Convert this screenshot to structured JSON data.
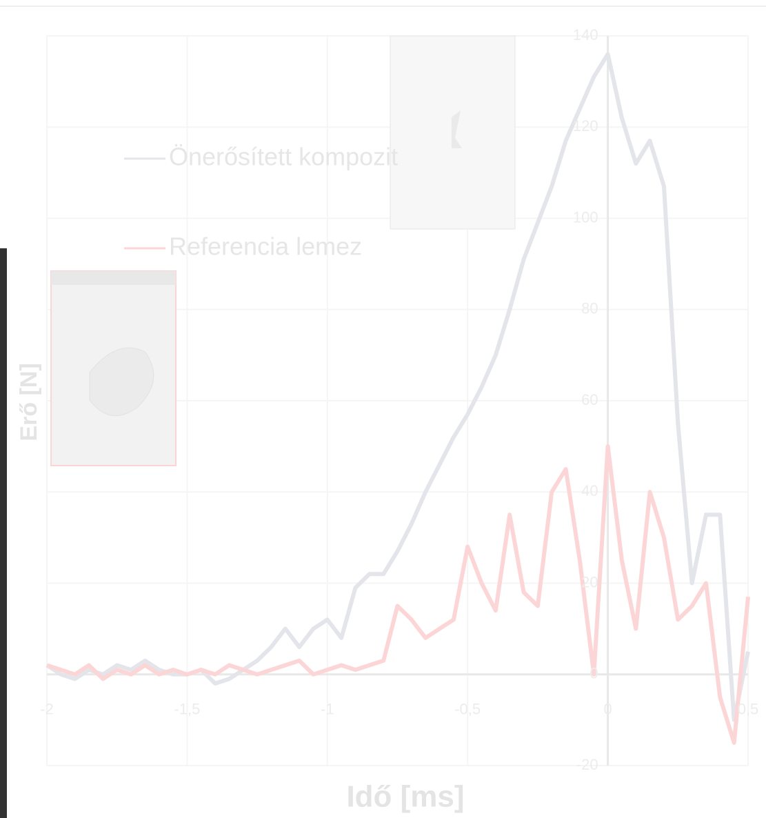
{
  "chart_data": {
    "type": "line",
    "x_label": "Idő [ms]",
    "y_label": "Erő [N]",
    "x": [
      -2,
      -1.95,
      -1.9,
      -1.85,
      -1.8,
      -1.75,
      -1.7,
      -1.65,
      -1.6,
      -1.55,
      -1.5,
      -1.45,
      -1.4,
      -1.35,
      -1.3,
      -1.25,
      -1.2,
      -1.15,
      -1.1,
      -1.05,
      -1,
      -0.95,
      -0.9,
      -0.85,
      -0.8,
      -0.75,
      -0.7,
      -0.65,
      -0.6,
      -0.55,
      -0.5,
      -0.45,
      -0.4,
      -0.35,
      -0.3,
      -0.25,
      -0.2,
      -0.15,
      -0.1,
      -0.05,
      0,
      0.05,
      0.1,
      0.15,
      0.2,
      0.25,
      0.3,
      0.35,
      0.4,
      0.45,
      0.5
    ],
    "series": [
      {
        "name": "Önerősített kompozit",
        "color": "#e3e5ea",
        "values": [
          2,
          0,
          -1,
          1,
          0,
          2,
          1,
          3,
          1,
          0,
          0,
          1,
          -2,
          -1,
          1,
          3,
          6,
          10,
          6,
          10,
          12,
          8,
          19,
          22,
          22,
          27,
          33,
          40,
          46,
          52,
          57,
          63,
          70,
          80,
          91,
          99,
          107,
          117,
          124,
          131,
          136,
          122,
          112,
          117,
          107,
          55,
          20,
          35,
          35,
          -10,
          5
        ]
      },
      {
        "name": "Referencia lemez",
        "color": "#fcd6d6",
        "values": [
          2,
          1,
          0,
          2,
          -1,
          1,
          0,
          2,
          0,
          1,
          0,
          1,
          0,
          2,
          1,
          0,
          1,
          2,
          3,
          0,
          1,
          2,
          1,
          2,
          3,
          15,
          12,
          8,
          10,
          12,
          28,
          20,
          14,
          35,
          18,
          15,
          40,
          45,
          25,
          0,
          50,
          25,
          10,
          40,
          30,
          12,
          15,
          20,
          -5,
          -15,
          17
        ]
      }
    ],
    "xlim": [
      -2,
      0.5
    ],
    "xticks": [
      -2,
      {
        "value": -1.5,
        "label": "-1,5"
      },
      -1,
      {
        "value": -0.5,
        "label": "-0,5"
      },
      0,
      {
        "value": 0.5,
        "label": "0,5"
      }
    ],
    "ylim": [
      -20,
      140
    ],
    "yticks": [
      -20,
      0,
      20,
      40,
      60,
      80,
      100,
      120,
      140
    ],
    "grid": true
  }
}
